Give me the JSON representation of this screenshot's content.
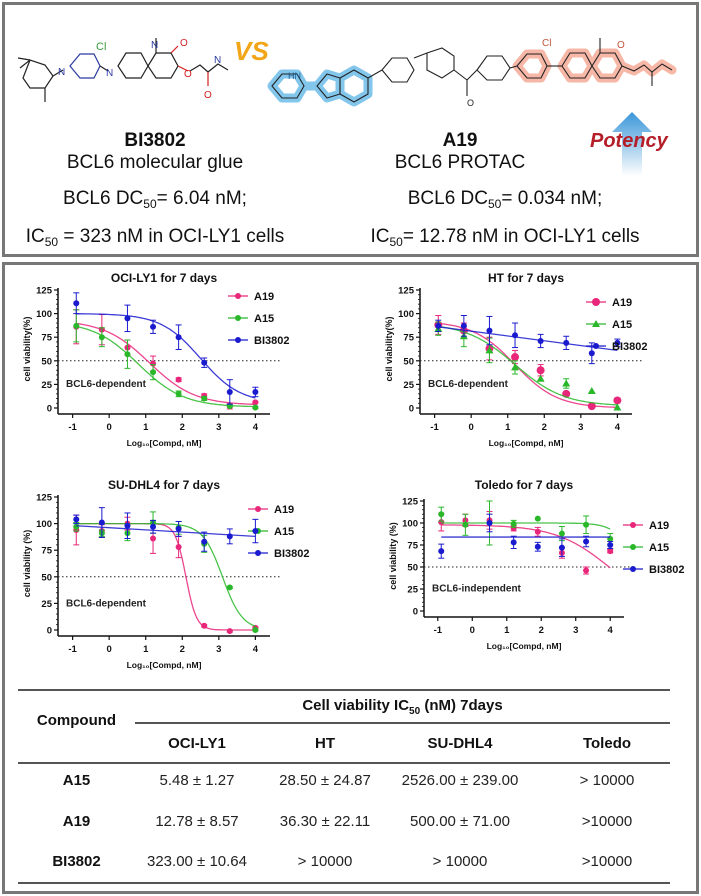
{
  "top": {
    "vs_label": "VS",
    "left_compound": {
      "name": "BI3802",
      "type": "BCL6 molecular glue",
      "dc50_prefix": "BCL6 DC",
      "dc50_sub": "50",
      "dc50_value": "= 6.04 nM;",
      "ic50_prefix": "IC",
      "ic50_sub": "50",
      "ic50_value": " = 323 nM in OCI-LY1 cells"
    },
    "right_compound": {
      "name": "A19",
      "type": "BCL6 PROTAC",
      "dc50_prefix": "BCL6 DC",
      "dc50_sub": "50",
      "dc50_value": "= 0.034 nM;",
      "ic50_prefix": "IC",
      "ic50_sub": "50",
      "ic50_value": "= 12.78 nM in OCI-LY1 cells"
    },
    "potency_label": "Potency",
    "structure_atoms": {
      "cl": "Cl",
      "n": "N",
      "nh": "NH",
      "h": "H",
      "o": "O",
      "hn": "HN"
    }
  },
  "colors": {
    "A19": "#e8267a",
    "A15": "#2ab82a",
    "BI3802": "#1a1acf",
    "vs": "#f2a516",
    "potency": "#b41e28",
    "glue_highlight": "#f4a08a",
    "cereblon_highlight": "#5ab4e6"
  },
  "chart_data": [
    {
      "type": "scatter",
      "title": "OCI-LY1 for 7 days",
      "xlabel": "Log10[Compd, nM]",
      "ylabel": "cell viability(%)",
      "annotation": "BCL6-dependent",
      "xlim": [
        -1.4,
        4.4
      ],
      "ylim": [
        0,
        125
      ],
      "xticks": [
        -1,
        0,
        1,
        2,
        3,
        4
      ],
      "yticks": [
        0,
        25,
        50,
        75,
        100,
        125
      ],
      "reference_line": 50,
      "legend_position": "top-right",
      "x": [
        -0.9,
        -0.2,
        0.5,
        1.2,
        1.9,
        2.6,
        3.3,
        4.0
      ],
      "series": [
        {
          "name": "A19",
          "marker": "circle",
          "values": [
            86,
            83,
            64,
            47,
            30,
            13,
            2,
            6
          ],
          "errors": [
            18,
            16,
            8,
            8,
            2,
            2,
            3,
            1
          ],
          "fit": {
            "top": 93,
            "bottom": 3,
            "logic50": 1.1,
            "hill": 0.7
          }
        },
        {
          "name": "A15",
          "marker": "circle",
          "values": [
            87,
            75,
            57,
            38,
            15,
            10,
            2,
            0.5
          ],
          "errors": [
            17,
            10,
            15,
            8,
            3,
            2,
            1,
            1
          ],
          "fit": {
            "top": 92,
            "bottom": 1,
            "logic50": 0.8,
            "hill": 0.7
          }
        },
        {
          "name": "BI3802",
          "marker": "circle",
          "values": [
            111,
            95,
            86,
            75,
            48,
            17,
            17
          ],
          "x_override": [
            -0.9,
            0.5,
            1.2,
            1.9,
            2.6,
            3.3,
            4.0
          ],
          "errors": [
            11,
            14,
            7,
            13,
            5,
            13,
            5
          ],
          "fit": {
            "top": 100,
            "bottom": 5,
            "logic50": 2.5,
            "hill": 0.8
          }
        }
      ]
    },
    {
      "type": "scatter",
      "title": "HT for 7 days",
      "xlabel": "Log10[Compd, nM]",
      "ylabel": "cell viability(%)",
      "annotation": "BCL6-dependent",
      "xlim": [
        -1.4,
        4.4
      ],
      "ylim": [
        0,
        125
      ],
      "xticks": [
        -1,
        0,
        1,
        2,
        3,
        4
      ],
      "yticks": [
        0,
        25,
        50,
        75,
        100,
        125
      ],
      "reference_line": 50,
      "legend_position": "top-right",
      "x": [
        -0.9,
        -0.2,
        0.5,
        1.2,
        1.9,
        2.6,
        3.3,
        4.0
      ],
      "series": [
        {
          "name": "A19",
          "marker": "circle-large",
          "values": [
            88,
            82,
            63,
            54,
            40,
            15,
            2,
            8
          ],
          "errors": [
            10,
            8,
            12,
            7,
            6,
            0,
            0,
            0
          ],
          "fit": {
            "top": 92,
            "bottom": 0,
            "logic50": 1.2,
            "hill": 0.75
          }
        },
        {
          "name": "A15",
          "marker": "triangle",
          "values": [
            84,
            76,
            61,
            43,
            31,
            26,
            18,
            0.5
          ],
          "errors": [
            7,
            11,
            13,
            7,
            0,
            5,
            0,
            0
          ],
          "fit": {
            "top": 90,
            "bottom": 2,
            "logic50": 1.2,
            "hill": 0.65
          }
        },
        {
          "name": "BI3802",
          "marker": "circle",
          "values": [
            87,
            87,
            82,
            77,
            71,
            69,
            58,
            69
          ],
          "errors": [
            6,
            11,
            15,
            13,
            7,
            7,
            11,
            4
          ],
          "fit_linear": {
            "x0": -0.9,
            "y0": 86,
            "x1": 4.0,
            "y1": 61
          }
        }
      ]
    },
    {
      "type": "scatter",
      "title": "SU-DHL4 for 7 days",
      "xlabel": "Log10[Compd, nM]",
      "ylabel": "cell viability (%)",
      "annotation": "BCL6-dependent",
      "xlim": [
        -1.4,
        4.4
      ],
      "ylim": [
        0,
        125
      ],
      "xticks": [
        -1,
        0,
        1,
        2,
        3,
        4
      ],
      "yticks": [
        0,
        25,
        50,
        75,
        100,
        125
      ],
      "reference_line": 50,
      "legend_position": "top-right",
      "x": [
        -0.9,
        -0.2,
        0.5,
        1.2,
        1.9,
        2.6,
        3.3,
        4.0
      ],
      "series": [
        {
          "name": "A19",
          "marker": "circle",
          "values": [
            94,
            93,
            100,
            86,
            78,
            4,
            -1,
            2
          ],
          "errors": [
            14,
            6,
            6,
            14,
            10,
            1,
            1,
            1
          ],
          "fit": {
            "top": 100,
            "bottom": 0,
            "logic50": 2.1,
            "hill": 3.0
          }
        },
        {
          "name": "A15",
          "marker": "circle",
          "values": [
            97,
            91,
            91,
            101,
            96,
            81,
            40,
            0
          ],
          "errors": [
            4,
            3,
            7,
            10,
            6,
            8,
            1,
            1
          ],
          "fit": {
            "top": 100,
            "bottom": 0,
            "logic50": 3.1,
            "hill": 1.6
          }
        },
        {
          "name": "BI3802",
          "marker": "circle",
          "values": [
            104,
            101,
            98,
            97,
            95,
            83,
            88,
            93
          ],
          "errors": [
            4,
            14,
            12,
            6,
            7,
            9,
            7,
            11
          ],
          "fit_linear": {
            "x0": -0.9,
            "y0": 98,
            "x1": 4.0,
            "y1": 88
          }
        }
      ]
    },
    {
      "type": "scatter",
      "title": "Toledo  for 7 days",
      "xlabel": "Log10[Compd, nM]",
      "ylabel": "cell viability (%)",
      "annotation": "BCL6-independent",
      "xlim": [
        -1.4,
        4.4
      ],
      "ylim": [
        0,
        125
      ],
      "xticks": [
        -1,
        0,
        1,
        2,
        3,
        4
      ],
      "yticks": [
        0,
        25,
        50,
        75,
        100,
        125
      ],
      "reference_line": 50,
      "legend_position": "right",
      "x": [
        -0.9,
        -0.2,
        0.5,
        1.2,
        1.9,
        2.6,
        3.3,
        4.0
      ],
      "series": [
        {
          "name": "A19",
          "marker": "circle",
          "values": [
            101,
            103,
            103,
            94,
            90,
            66,
            46,
            68
          ],
          "errors": [
            10,
            7,
            10,
            3,
            5,
            6,
            4,
            2
          ],
          "fit": {
            "top": 98,
            "bottom": 0,
            "logic50": 4.0,
            "hill": 0.55
          }
        },
        {
          "name": "A15",
          "marker": "circle",
          "values": [
            110,
            98,
            100,
            99,
            105,
            88,
            98,
            82
          ],
          "errors": [
            8,
            12,
            25,
            4,
            0,
            8,
            10,
            6
          ],
          "fit": {
            "top": 100,
            "bottom": 0,
            "logic50": 4.8,
            "hill": 1.4
          }
        },
        {
          "name": "BI3802",
          "marker": "circle",
          "values": [
            68,
            100,
            78,
            73,
            72,
            79,
            75
          ],
          "x_override": [
            -0.9,
            0.5,
            1.2,
            1.9,
            2.6,
            3.3,
            4.0
          ],
          "errors": [
            8,
            10,
            7,
            5,
            10,
            6,
            4
          ],
          "fit_linear": {
            "x0": -0.9,
            "y0": 84,
            "x1": 4.0,
            "y1": 84
          }
        }
      ]
    },
    {
      "type": "table",
      "title_prefix": "Cell viability IC",
      "title_sub": "50",
      "title_suffix": " (nM) 7days",
      "row_header": "Compound",
      "columns": [
        "OCI-LY1",
        "HT",
        "SU-DHL4",
        "Toledo"
      ],
      "rows": [
        {
          "compound": "A15",
          "values": [
            "5.48 ± 1.27",
            "28.50 ± 24.87",
            "2526.00 ± 239.00",
            "> 10000"
          ]
        },
        {
          "compound": "A19",
          "values": [
            "12.78 ± 8.57",
            "36.30 ± 22.11",
            "500.00 ± 71.00",
            ">10000"
          ]
        },
        {
          "compound": "BI3802",
          "values": [
            "323.00 ± 10.64",
            "> 10000",
            "> 10000",
            ">10000"
          ]
        }
      ]
    }
  ]
}
